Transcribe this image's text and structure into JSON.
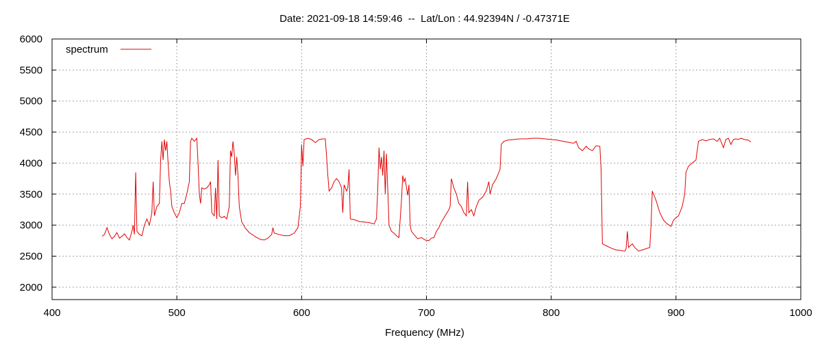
{
  "chart_data": {
    "type": "line",
    "title": "Date: 2021-09-18 14:59:46  --  Lat/Lon : 44.92394N / -0.47371E",
    "xlabel": "Frequency (MHz)",
    "ylabel": "",
    "xlim": [
      400,
      1000
    ],
    "ylim": [
      1800,
      6000
    ],
    "xticks": [
      400,
      500,
      600,
      700,
      800,
      900,
      1000
    ],
    "yticks": [
      2000,
      2500,
      3000,
      3500,
      4000,
      4500,
      5000,
      5500,
      6000
    ],
    "grid": true,
    "legend": "top-left",
    "series": [
      {
        "name": "spectrum",
        "color": "#e00000",
        "points": [
          [
            440,
            2820
          ],
          [
            442,
            2850
          ],
          [
            444,
            2960
          ],
          [
            446,
            2850
          ],
          [
            448,
            2780
          ],
          [
            450,
            2820
          ],
          [
            452,
            2880
          ],
          [
            454,
            2790
          ],
          [
            456,
            2820
          ],
          [
            458,
            2860
          ],
          [
            460,
            2800
          ],
          [
            462,
            2760
          ],
          [
            464,
            2900
          ],
          [
            465,
            3000
          ],
          [
            466,
            2850
          ],
          [
            467,
            3850
          ],
          [
            468,
            2900
          ],
          [
            470,
            2850
          ],
          [
            472,
            2830
          ],
          [
            474,
            3000
          ],
          [
            476,
            3100
          ],
          [
            478,
            3000
          ],
          [
            480,
            3200
          ],
          [
            481,
            3700
          ],
          [
            482,
            3150
          ],
          [
            484,
            3300
          ],
          [
            486,
            3350
          ],
          [
            487,
            4050
          ],
          [
            488,
            4350
          ],
          [
            489,
            4050
          ],
          [
            490,
            4380
          ],
          [
            491,
            4200
          ],
          [
            492,
            4350
          ],
          [
            493,
            4000
          ],
          [
            494,
            3700
          ],
          [
            495,
            3550
          ],
          [
            496,
            3300
          ],
          [
            498,
            3200
          ],
          [
            500,
            3120
          ],
          [
            502,
            3200
          ],
          [
            504,
            3350
          ],
          [
            506,
            3350
          ],
          [
            508,
            3500
          ],
          [
            510,
            3700
          ],
          [
            511,
            4350
          ],
          [
            512,
            4400
          ],
          [
            514,
            4350
          ],
          [
            516,
            4400
          ],
          [
            517,
            4000
          ],
          [
            518,
            3500
          ],
          [
            519,
            3350
          ],
          [
            520,
            3600
          ],
          [
            522,
            3580
          ],
          [
            524,
            3600
          ],
          [
            526,
            3650
          ],
          [
            527,
            3700
          ],
          [
            528,
            3200
          ],
          [
            530,
            3150
          ],
          [
            531,
            3600
          ],
          [
            532,
            3100
          ],
          [
            533,
            4050
          ],
          [
            534,
            3150
          ],
          [
            536,
            3120
          ],
          [
            538,
            3140
          ],
          [
            540,
            3100
          ],
          [
            542,
            3300
          ],
          [
            543,
            4200
          ],
          [
            544,
            4100
          ],
          [
            545,
            4350
          ],
          [
            546,
            4150
          ],
          [
            547,
            3800
          ],
          [
            548,
            4100
          ],
          [
            549,
            3800
          ],
          [
            550,
            3300
          ],
          [
            552,
            3050
          ],
          [
            555,
            2950
          ],
          [
            558,
            2880
          ],
          [
            561,
            2840
          ],
          [
            564,
            2800
          ],
          [
            567,
            2770
          ],
          [
            570,
            2760
          ],
          [
            573,
            2790
          ],
          [
            576,
            2850
          ],
          [
            577,
            2960
          ],
          [
            578,
            2870
          ],
          [
            582,
            2850
          ],
          [
            586,
            2830
          ],
          [
            590,
            2830
          ],
          [
            594,
            2870
          ],
          [
            597,
            2960
          ],
          [
            599,
            3300
          ],
          [
            600,
            4300
          ],
          [
            601,
            3950
          ],
          [
            602,
            4380
          ],
          [
            605,
            4400
          ],
          [
            608,
            4380
          ],
          [
            611,
            4330
          ],
          [
            614,
            4380
          ],
          [
            617,
            4390
          ],
          [
            619,
            4390
          ],
          [
            620,
            4100
          ],
          [
            621,
            3800
          ],
          [
            622,
            3550
          ],
          [
            624,
            3600
          ],
          [
            626,
            3700
          ],
          [
            628,
            3750
          ],
          [
            630,
            3700
          ],
          [
            632,
            3600
          ],
          [
            633,
            3200
          ],
          [
            634,
            3650
          ],
          [
            636,
            3550
          ],
          [
            637,
            3600
          ],
          [
            638,
            3900
          ],
          [
            639,
            3100
          ],
          [
            642,
            3090
          ],
          [
            646,
            3060
          ],
          [
            650,
            3050
          ],
          [
            654,
            3040
          ],
          [
            658,
            3020
          ],
          [
            660,
            3100
          ],
          [
            661,
            3600
          ],
          [
            662,
            4250
          ],
          [
            663,
            3900
          ],
          [
            664,
            4100
          ],
          [
            665,
            3800
          ],
          [
            666,
            4200
          ],
          [
            667,
            3500
          ],
          [
            668,
            4150
          ],
          [
            669,
            3600
          ],
          [
            670,
            3000
          ],
          [
            672,
            2900
          ],
          [
            674,
            2870
          ],
          [
            676,
            2830
          ],
          [
            678,
            2800
          ],
          [
            680,
            3400
          ],
          [
            681,
            3800
          ],
          [
            682,
            3700
          ],
          [
            683,
            3750
          ],
          [
            684,
            3600
          ],
          [
            685,
            3480
          ],
          [
            686,
            3650
          ],
          [
            687,
            3000
          ],
          [
            688,
            2900
          ],
          [
            690,
            2850
          ],
          [
            693,
            2780
          ],
          [
            696,
            2800
          ],
          [
            699,
            2760
          ],
          [
            702,
            2750
          ],
          [
            704,
            2790
          ],
          [
            706,
            2800
          ],
          [
            708,
            2900
          ],
          [
            710,
            2960
          ],
          [
            712,
            3050
          ],
          [
            715,
            3150
          ],
          [
            718,
            3250
          ],
          [
            719,
            3300
          ],
          [
            720,
            3750
          ],
          [
            722,
            3600
          ],
          [
            724,
            3500
          ],
          [
            726,
            3350
          ],
          [
            728,
            3300
          ],
          [
            730,
            3200
          ],
          [
            732,
            3150
          ],
          [
            733,
            3700
          ],
          [
            734,
            3200
          ],
          [
            736,
            3250
          ],
          [
            738,
            3150
          ],
          [
            740,
            3300
          ],
          [
            742,
            3400
          ],
          [
            745,
            3450
          ],
          [
            748,
            3550
          ],
          [
            750,
            3700
          ],
          [
            751,
            3500
          ],
          [
            753,
            3650
          ],
          [
            756,
            3750
          ],
          [
            759,
            3900
          ],
          [
            760,
            4300
          ],
          [
            762,
            4350
          ],
          [
            765,
            4370
          ],
          [
            770,
            4380
          ],
          [
            775,
            4390
          ],
          [
            780,
            4390
          ],
          [
            785,
            4400
          ],
          [
            790,
            4400
          ],
          [
            795,
            4390
          ],
          [
            800,
            4380
          ],
          [
            805,
            4370
          ],
          [
            810,
            4350
          ],
          [
            815,
            4330
          ],
          [
            818,
            4320
          ],
          [
            820,
            4350
          ],
          [
            822,
            4250
          ],
          [
            825,
            4200
          ],
          [
            828,
            4270
          ],
          [
            830,
            4230
          ],
          [
            833,
            4200
          ],
          [
            836,
            4280
          ],
          [
            839,
            4270
          ],
          [
            840,
            3900
          ],
          [
            841,
            2700
          ],
          [
            845,
            2660
          ],
          [
            848,
            2630
          ],
          [
            852,
            2600
          ],
          [
            856,
            2590
          ],
          [
            859,
            2580
          ],
          [
            860,
            2620
          ],
          [
            861,
            2900
          ],
          [
            862,
            2640
          ],
          [
            865,
            2700
          ],
          [
            867,
            2640
          ],
          [
            870,
            2580
          ],
          [
            873,
            2600
          ],
          [
            876,
            2620
          ],
          [
            879,
            2640
          ],
          [
            880,
            3000
          ],
          [
            881,
            3550
          ],
          [
            884,
            3400
          ],
          [
            887,
            3200
          ],
          [
            890,
            3080
          ],
          [
            893,
            3020
          ],
          [
            896,
            2980
          ],
          [
            898,
            3080
          ],
          [
            900,
            3120
          ],
          [
            902,
            3150
          ],
          [
            905,
            3300
          ],
          [
            907,
            3500
          ],
          [
            908,
            3850
          ],
          [
            910,
            3950
          ],
          [
            913,
            4000
          ],
          [
            916,
            4050
          ],
          [
            917,
            4200
          ],
          [
            918,
            4350
          ],
          [
            921,
            4380
          ],
          [
            924,
            4360
          ],
          [
            927,
            4380
          ],
          [
            930,
            4390
          ],
          [
            933,
            4350
          ],
          [
            935,
            4400
          ],
          [
            938,
            4250
          ],
          [
            940,
            4380
          ],
          [
            942,
            4400
          ],
          [
            944,
            4300
          ],
          [
            946,
            4380
          ],
          [
            948,
            4390
          ],
          [
            950,
            4380
          ],
          [
            952,
            4400
          ],
          [
            955,
            4380
          ],
          [
            958,
            4370
          ],
          [
            960,
            4340
          ]
        ]
      }
    ]
  }
}
